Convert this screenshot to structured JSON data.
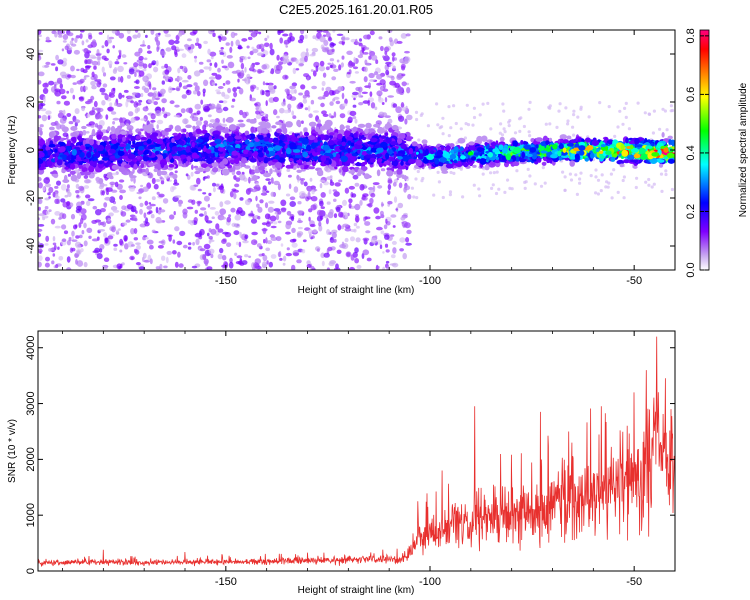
{
  "title": "C2E5.2025.161.20.01.R05",
  "chart_data": [
    {
      "type": "heatmap",
      "xlabel": "Height of straight line (km)",
      "ylabel": "Frequency (Hz)",
      "xlim": [
        -196,
        -40
      ],
      "ylim": [
        -50,
        50
      ],
      "x_ticks": [
        -150,
        -100,
        -50
      ],
      "y_ticks": [
        -40,
        -20,
        0,
        20,
        40
      ],
      "colorbar": {
        "label": "Normalized spectral amplitude",
        "range": [
          0,
          0.82
        ],
        "ticks": [
          0.0,
          0.2,
          0.4,
          0.6,
          0.8
        ],
        "colors": [
          "#ffffff",
          "#c8a8f0",
          "#7f00ff",
          "#0000ff",
          "#00ffff",
          "#00ff00",
          "#ffff00",
          "#ff8000",
          "#ff0000",
          "#ff0080"
        ]
      },
      "band": {
        "center_freq_hz": [
          {
            "x": -196,
            "y": -2
          },
          {
            "x": -150,
            "y": 1
          },
          {
            "x": -110,
            "y": 0
          },
          {
            "x": -100,
            "y": -3
          },
          {
            "x": -80,
            "y": -1
          },
          {
            "x": -60,
            "y": 0
          },
          {
            "x": -42,
            "y": -1
          }
        ],
        "peak_amplitude": [
          {
            "x": -196,
            "y": 0.25
          },
          {
            "x": -105,
            "y": 0.3
          },
          {
            "x": -95,
            "y": 0.4
          },
          {
            "x": -75,
            "y": 0.5
          },
          {
            "x": -60,
            "y": 0.6
          },
          {
            "x": -45,
            "y": 0.8
          }
        ]
      },
      "noise_cutoff_km": -105
    },
    {
      "type": "line",
      "xlabel": "Height of straight line (km)",
      "ylabel": "SNR (10 * v/v)",
      "xlim": [
        -196,
        -40
      ],
      "ylim": [
        0,
        4300
      ],
      "x_ticks": [
        -150,
        -100,
        -50
      ],
      "y_ticks": [
        0,
        1000,
        2000,
        3000,
        4000
      ],
      "series": [
        {
          "color": "#e8302e",
          "envelope": [
            {
              "x": -196,
              "mean": 150,
              "spread": 80
            },
            {
              "x": -150,
              "mean": 160,
              "spread": 90
            },
            {
              "x": -106,
              "mean": 220,
              "spread": 120
            },
            {
              "x": -102,
              "mean": 600,
              "spread": 450
            },
            {
              "x": -90,
              "mean": 900,
              "spread": 800
            },
            {
              "x": -75,
              "mean": 1000,
              "spread": 900
            },
            {
              "x": -60,
              "mean": 1300,
              "spread": 1200
            },
            {
              "x": -50,
              "mean": 1600,
              "spread": 1500
            },
            {
              "x": -44,
              "mean": 2400,
              "spread": 1900
            },
            {
              "x": -40,
              "mean": 1500,
              "spread": 1300
            }
          ],
          "peaks": [
            {
              "x": -196,
              "y": 250
            },
            {
              "x": -180,
              "y": 380
            },
            {
              "x": -160,
              "y": 340
            },
            {
              "x": -130,
              "y": 330
            },
            {
              "x": -103,
              "y": 1250
            },
            {
              "x": -97,
              "y": 1800
            },
            {
              "x": -89,
              "y": 2950
            },
            {
              "x": -73,
              "y": 2850
            },
            {
              "x": -66,
              "y": 2500
            },
            {
              "x": -58,
              "y": 2950
            },
            {
              "x": -50,
              "y": 3200
            },
            {
              "x": -47,
              "y": 3600
            },
            {
              "x": -44.5,
              "y": 4200
            },
            {
              "x": -41,
              "y": 2900
            }
          ]
        }
      ]
    }
  ]
}
